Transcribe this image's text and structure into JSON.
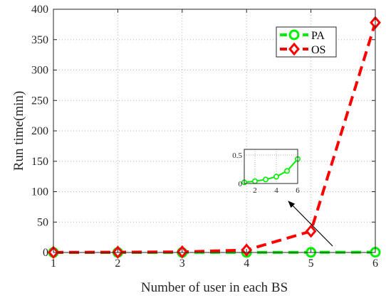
{
  "chart_data": [
    {
      "type": "line",
      "title": "",
      "xlabel": "Number of user in each BS",
      "ylabel": "Run time(min)",
      "xlim": [
        1,
        6
      ],
      "ylim": [
        0,
        400
      ],
      "x_ticks": [
        1,
        2,
        3,
        4,
        5,
        6
      ],
      "y_ticks": [
        0,
        50,
        100,
        150,
        200,
        250,
        300,
        350,
        400
      ],
      "grid": true,
      "legend_placement": "top-right",
      "x": [
        1,
        2,
        3,
        4,
        5,
        6
      ],
      "series": [
        {
          "name": "PA",
          "values": [
            0.02,
            0.04,
            0.07,
            0.12,
            0.22,
            0.43
          ],
          "color": "#00ee00",
          "marker": "circle",
          "line": "dashed"
        },
        {
          "name": "OS",
          "values": [
            0.2,
            0.5,
            1.0,
            4.0,
            35,
            378
          ],
          "color": "#ff0000",
          "marker": "diamond",
          "line": "dashed"
        }
      ]
    },
    {
      "type": "line",
      "title": "",
      "xlabel": "",
      "ylabel": "",
      "xlim": [
        1,
        6
      ],
      "ylim": [
        0,
        0.6
      ],
      "x_ticks": [
        2,
        4,
        6
      ],
      "x_tick_labels": [
        "2",
        "4",
        "6"
      ],
      "y_ticks": [
        0,
        0.5
      ],
      "y_tick_labels": [
        "0",
        "0.5"
      ],
      "grid": true,
      "x": [
        1,
        2,
        3,
        4,
        5,
        6
      ],
      "series": [
        {
          "values": [
            0.02,
            0.04,
            0.07,
            0.12,
            0.22,
            0.43
          ],
          "color": "#00ee00",
          "marker": "circle",
          "line": "solid"
        }
      ],
      "annotation": "arrow pointing from the PA curve near x=5 to this inset"
    }
  ]
}
